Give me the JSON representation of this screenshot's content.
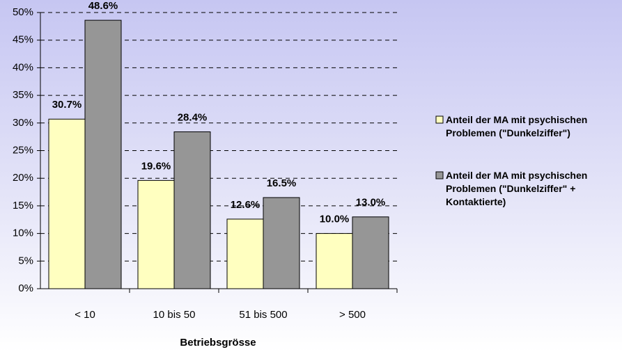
{
  "chart_data": {
    "type": "bar",
    "xlabel": "Betriebsgrösse",
    "categories": [
      "< 10",
      "10 bis 50",
      "51 bis 500",
      "> 500"
    ],
    "series": [
      {
        "name": "Anteil der MA mit psychischen Problemen (\"Dunkelziffer\")",
        "color": "#ffffc0",
        "values": [
          30.7,
          19.6,
          12.6,
          10.0
        ],
        "value_labels": [
          "30.7%",
          "19.6%",
          "12.6%",
          "10.0%"
        ]
      },
      {
        "name": "Anteil der MA mit psychischen Problemen (\"Dunkelziffer\" + Kontaktierte)",
        "color": "#969696",
        "values": [
          48.6,
          28.4,
          16.5,
          13.0
        ],
        "value_labels": [
          "48.6%",
          "28.4%",
          "16.5%",
          "13.0%"
        ]
      }
    ],
    "ylim": [
      0,
      50
    ],
    "yticks": [
      {
        "value": 0,
        "label": "0%"
      },
      {
        "value": 5,
        "label": "5%"
      },
      {
        "value": 10,
        "label": "10%"
      },
      {
        "value": 15,
        "label": "15%"
      },
      {
        "value": 20,
        "label": "20%"
      },
      {
        "value": 25,
        "label": "25%"
      },
      {
        "value": 30,
        "label": "30%"
      },
      {
        "value": 35,
        "label": "35%"
      },
      {
        "value": 40,
        "label": "40%"
      },
      {
        "value": 45,
        "label": "45%"
      },
      {
        "value": 50,
        "label": "50%"
      }
    ],
    "grid": true,
    "legend": "right"
  }
}
